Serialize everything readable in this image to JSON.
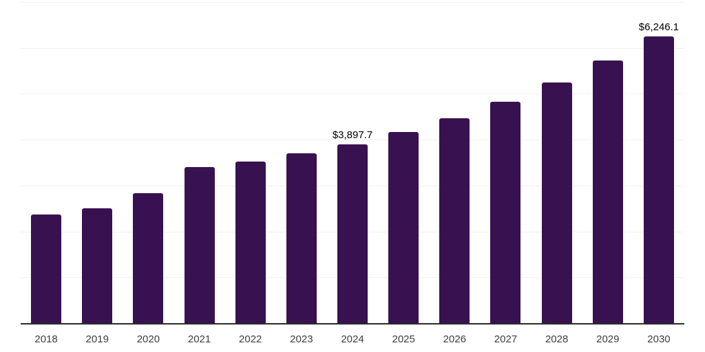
{
  "chart_data": {
    "type": "bar",
    "title": "",
    "xlabel": "",
    "ylabel": "",
    "categories": [
      "2018",
      "2019",
      "2020",
      "2021",
      "2022",
      "2023",
      "2024",
      "2025",
      "2026",
      "2027",
      "2028",
      "2029",
      "2030"
    ],
    "values": [
      2370,
      2500,
      2830,
      3400,
      3520,
      3700,
      3897.7,
      4170,
      4470,
      4830,
      5250,
      5730,
      6246.1
    ],
    "data_labels": {
      "2024": "$3,897.7",
      "2030": "$6,246.1"
    },
    "ylim": [
      0,
      7000
    ],
    "gridline_interval": 1000,
    "grid": "horizontal",
    "legend": "none",
    "colors": {
      "bar": "#381150",
      "gridline": "#f1f1f1",
      "axis_line": "#2b2b2b",
      "tick_label": "#3d3d3d",
      "data_label": "#000000",
      "background": "#ffffff"
    }
  }
}
